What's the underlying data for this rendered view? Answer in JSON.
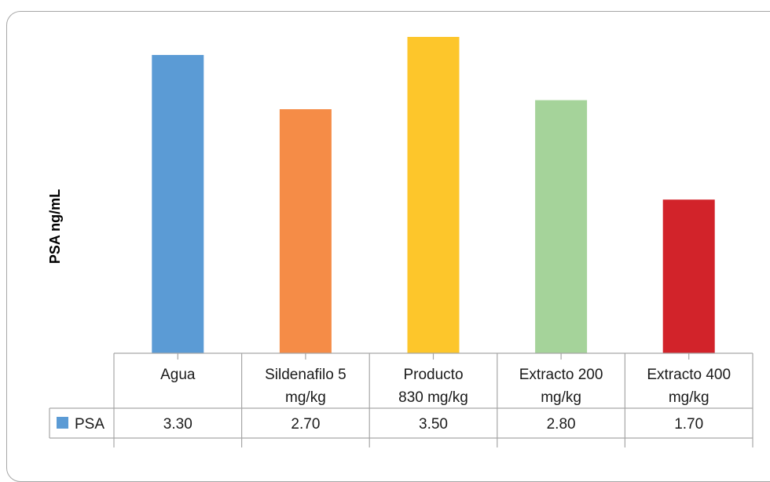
{
  "chart_data": {
    "type": "bar",
    "ylabel": "PSA ng/mL",
    "categories": [
      [
        "Agua"
      ],
      [
        "Sildenafilo 5",
        "mg/kg"
      ],
      [
        "Producto",
        "830 mg/kg"
      ],
      [
        "Extracto 200",
        "mg/kg"
      ],
      [
        "Extracto 400",
        "mg/kg"
      ]
    ],
    "series": [
      {
        "name": "PSA",
        "values": [
          3.3,
          2.7,
          3.5,
          2.8,
          1.7
        ],
        "value_labels": [
          "3.30",
          "2.70",
          "3.50",
          "2.80",
          "1.70"
        ],
        "colors": [
          "#5b9bd5",
          "#f58c47",
          "#fdc62b",
          "#a5d39a",
          "#d2232a"
        ],
        "legend_color": "#5b9bd5"
      }
    ],
    "ylim": [
      0,
      3.5
    ],
    "grid": false,
    "legend": "data-table"
  }
}
